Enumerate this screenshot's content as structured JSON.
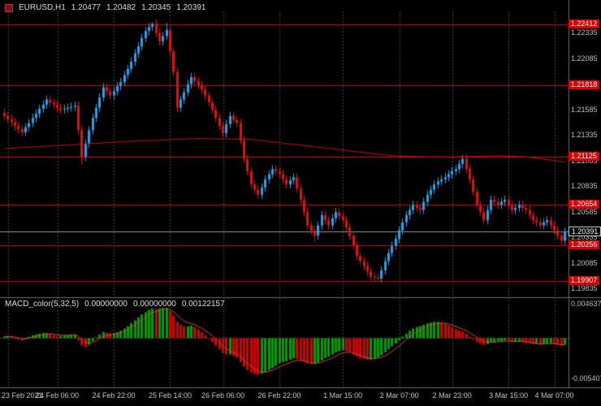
{
  "header": {
    "symbol_tf": "EURUSD,H1",
    "open": "1.20477",
    "high": "1.20482",
    "low": "1.20345",
    "close": "1.20391"
  },
  "macd": {
    "title": "MACD_color(5,32,5)",
    "values": [
      "0.00000000",
      "0.00000000",
      "0.00122157"
    ],
    "scale_max": "0.0046377",
    "scale_min": "-0.0054077"
  },
  "chart_data": {
    "type": "candlestick",
    "title": "EURUSD,H1",
    "ylim": [
      1.1978,
      1.2251
    ],
    "y_axis_labels": [
      "1.22335",
      "1.22085",
      "1.21835",
      "1.21585",
      "1.21335",
      "1.21085",
      "1.20835",
      "1.20585",
      "1.20335",
      "1.20085",
      "1.19835"
    ],
    "levels": [
      1.22412,
      1.21818,
      1.21125,
      1.20654,
      1.20256,
      1.19907
    ],
    "current_price": 1.20391,
    "x_labels": [
      {
        "text": "23 Feb 2021",
        "index": 1
      },
      {
        "text": "24 Feb 06:00",
        "index": 15
      },
      {
        "text": "24 Feb 22:00",
        "index": 31
      },
      {
        "text": "25 Feb 14:00",
        "index": 47
      },
      {
        "text": "26 Feb 06:00",
        "index": 62
      },
      {
        "text": "26 Feb 22:00",
        "index": 78
      },
      {
        "text": "1 Mar 15:00",
        "index": 96
      },
      {
        "text": "2 Mar 07:00",
        "index": 112
      },
      {
        "text": "2 Mar 23:00",
        "index": 127
      },
      {
        "text": "3 Mar 15:00",
        "index": 143
      },
      {
        "text": "4 Mar 07:00",
        "index": 156
      }
    ],
    "first_open": 1.2155,
    "wick": 0.0004,
    "wick_overrides": {
      "22": {
        "low": 1.2105
      },
      "42": {
        "high": 1.22435
      },
      "46": {
        "high": 1.2243
      },
      "88": {
        "low": 1.2029
      },
      "106": {
        "low": 1.19905
      },
      "158": {
        "low": 1.2026
      }
    },
    "closes": [
      1.2152,
      1.2149,
      1.2146,
      1.2142,
      1.2139,
      1.2136,
      1.2141,
      1.2145,
      1.215,
      1.2154,
      1.2159,
      1.2163,
      1.2168,
      1.2165,
      1.2163,
      1.216,
      1.2158,
      1.2159,
      1.216,
      1.2161,
      1.2162,
      1.2138,
      1.2112,
      1.2125,
      1.2138,
      1.215,
      1.216,
      1.217,
      1.218,
      1.2176,
      1.2172,
      1.2176,
      1.2181,
      1.2185,
      1.2192,
      1.2198,
      1.2205,
      1.2213,
      1.222,
      1.2228,
      1.2235,
      1.2239,
      1.2242,
      1.2233,
      1.2225,
      1.223,
      1.2236,
      1.2215,
      1.2195,
      1.216,
      1.2168,
      1.2175,
      1.2183,
      1.219,
      1.2186,
      1.2182,
      1.2178,
      1.2172,
      1.2165,
      1.2158,
      1.215,
      1.2142,
      1.2135,
      1.2144,
      1.2152,
      1.2148,
      1.2145,
      1.2128,
      1.211,
      1.2098,
      1.2085,
      1.208,
      1.2075,
      1.2082,
      1.209,
      1.2095,
      1.21,
      1.2098,
      1.2095,
      1.209,
      1.2085,
      1.2089,
      1.2092,
      1.2081,
      1.207,
      1.2058,
      1.2045,
      1.204,
      1.2035,
      1.2045,
      1.2055,
      1.205,
      1.2045,
      1.2052,
      1.2058,
      1.2054,
      1.205,
      1.2043,
      1.2035,
      1.2025,
      1.2015,
      1.201,
      1.2005,
      1.2,
      1.1995,
      1.1994,
      1.1993,
      1.2001,
      1.201,
      1.2018,
      1.2025,
      1.2032,
      1.204,
      1.2048,
      1.2055,
      1.206,
      1.2065,
      1.2062,
      1.206,
      1.2068,
      1.2075,
      1.208,
      1.2085,
      1.2088,
      1.209,
      1.2092,
      1.2095,
      1.2098,
      1.21,
      1.2105,
      1.211,
      1.21,
      1.209,
      1.2078,
      1.2065,
      1.2058,
      1.205,
      1.206,
      1.207,
      1.2068,
      1.2065,
      1.2068,
      1.207,
      1.2065,
      1.206,
      1.2062,
      1.2065,
      1.2062,
      1.206,
      1.2055,
      1.205,
      1.2048,
      1.2045,
      1.2048,
      1.205,
      1.2045,
      1.204,
      1.2035,
      1.203,
      1.20391
    ],
    "ma_points": [
      [
        0,
        1.212
      ],
      [
        20,
        1.2124
      ],
      [
        35,
        1.2127
      ],
      [
        55,
        1.213
      ],
      [
        70,
        1.2129
      ],
      [
        80,
        1.2125
      ],
      [
        90,
        1.2121
      ],
      [
        100,
        1.2117
      ],
      [
        110,
        1.2113
      ],
      [
        120,
        1.2112
      ],
      [
        130,
        1.2112
      ],
      [
        140,
        1.2113
      ],
      [
        148,
        1.2112
      ],
      [
        159,
        1.2107
      ]
    ],
    "macd": {
      "ylim": [
        -0.0054077,
        0.0046377
      ],
      "histogram": [
        0.0002,
        0.0003,
        0.0002,
        0.0,
        -0.0002,
        -0.0003,
        -0.0001,
        0.0002,
        0.0004,
        0.0005,
        0.0006,
        0.0007,
        0.0007,
        0.0006,
        0.0004,
        0.0003,
        0.0003,
        0.0004,
        0.0004,
        0.0005,
        0.0005,
        -0.0003,
        -0.001,
        -0.0012,
        -0.0009,
        -0.0004,
        0.0001,
        0.0005,
        0.0008,
        0.0007,
        0.0006,
        0.0007,
        0.0008,
        0.001,
        0.0013,
        0.0016,
        0.002,
        0.0024,
        0.0028,
        0.0032,
        0.0035,
        0.0038,
        0.004,
        0.0039,
        0.004,
        0.0041,
        0.0041,
        0.0036,
        0.003,
        0.0022,
        0.0018,
        0.0016,
        0.0016,
        0.0017,
        0.0015,
        0.0012,
        0.0008,
        0.0004,
        0.0,
        -0.0005,
        -0.001,
        -0.0015,
        -0.002,
        -0.0022,
        -0.0022,
        -0.0024,
        -0.0026,
        -0.0032,
        -0.0038,
        -0.0043,
        -0.0046,
        -0.0048,
        -0.0049,
        -0.0048,
        -0.0046,
        -0.0043,
        -0.004,
        -0.0037,
        -0.0034,
        -0.0032,
        -0.0031,
        -0.0029,
        -0.0027,
        -0.0028,
        -0.003,
        -0.0032,
        -0.0034,
        -0.0035,
        -0.0035,
        -0.0033,
        -0.003,
        -0.0027,
        -0.0025,
        -0.0022,
        -0.0019,
        -0.0017,
        -0.0016,
        -0.0017,
        -0.0019,
        -0.0022,
        -0.0025,
        -0.0027,
        -0.0028,
        -0.0029,
        -0.0029,
        -0.0028,
        -0.0026,
        -0.0023,
        -0.0019,
        -0.0015,
        -0.0011,
        -0.0007,
        -0.0003,
        0.0002,
        0.0006,
        0.001,
        0.0013,
        0.0015,
        0.0016,
        0.0018,
        0.002,
        0.0021,
        0.0022,
        0.0022,
        0.0021,
        0.0019,
        0.0017,
        0.0015,
        0.0012,
        0.001,
        0.0009,
        0.0006,
        0.0002,
        -0.0002,
        -0.0005,
        -0.0007,
        -0.0009,
        -0.0008,
        -0.0006,
        -0.0005,
        -0.0004,
        -0.0004,
        -0.0003,
        -0.0004,
        -0.0005,
        -0.0005,
        -0.0004,
        -0.0005,
        -0.0006,
        -0.0007,
        -0.0008,
        -0.0008,
        -0.0009,
        -0.0008,
        -0.0007,
        -0.0007,
        -0.0008,
        -0.0009,
        -0.001,
        -0.0009
      ]
    },
    "colors": {
      "candle_up": "#25a3ef",
      "candle_down": "#e01212",
      "level": "#dd0000",
      "ma": "#cc1111",
      "price_line": "#999999",
      "grid": "#484848",
      "macd_up": "#00a000",
      "macd_down": "#d80000",
      "macd_signal": "#d84848",
      "separator": "#6e6e6e",
      "zero_line": "#777777"
    }
  }
}
